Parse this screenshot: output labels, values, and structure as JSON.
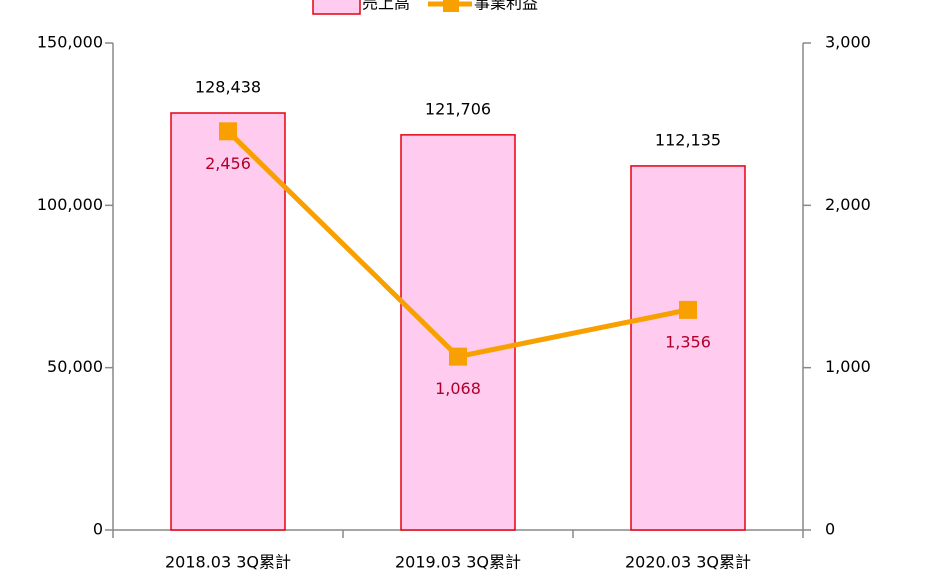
{
  "chart_data": {
    "type": "bar+line",
    "categories": [
      "2018.03 3Q累計",
      "2019.03 3Q累計",
      "2020.03 3Q累計"
    ],
    "series": [
      {
        "name": "売上高",
        "type": "bar",
        "color": "#ffccf0",
        "edgecolor": "#e8000f",
        "values": [
          128438,
          121706,
          112135
        ],
        "value_labels": [
          "128,438",
          "121,706",
          "112,135"
        ],
        "label_color": "#000000"
      },
      {
        "name": "事業利益",
        "type": "line",
        "axis": "y2",
        "color": "#f7a000",
        "values": [
          2456,
          1068,
          1356
        ],
        "value_labels": [
          "2,456",
          "1,068",
          "1,356"
        ],
        "label_color": "#b0002a"
      }
    ],
    "ylim": [
      0,
      150000
    ],
    "yticks": [
      0,
      {
        "value": 50000,
        "label": "50,000"
      },
      {
        "value": 100000,
        "label": "100,000"
      },
      {
        "value": 150000,
        "label": "150,000"
      }
    ],
    "y2lim": [
      0,
      3000
    ],
    "y2ticks": [
      0,
      {
        "value": 1000,
        "label": "1,000"
      },
      {
        "value": 2000,
        "label": "2,000"
      },
      {
        "value": 3000,
        "label": "3,000"
      }
    ],
    "grid": false,
    "legend": "top"
  }
}
